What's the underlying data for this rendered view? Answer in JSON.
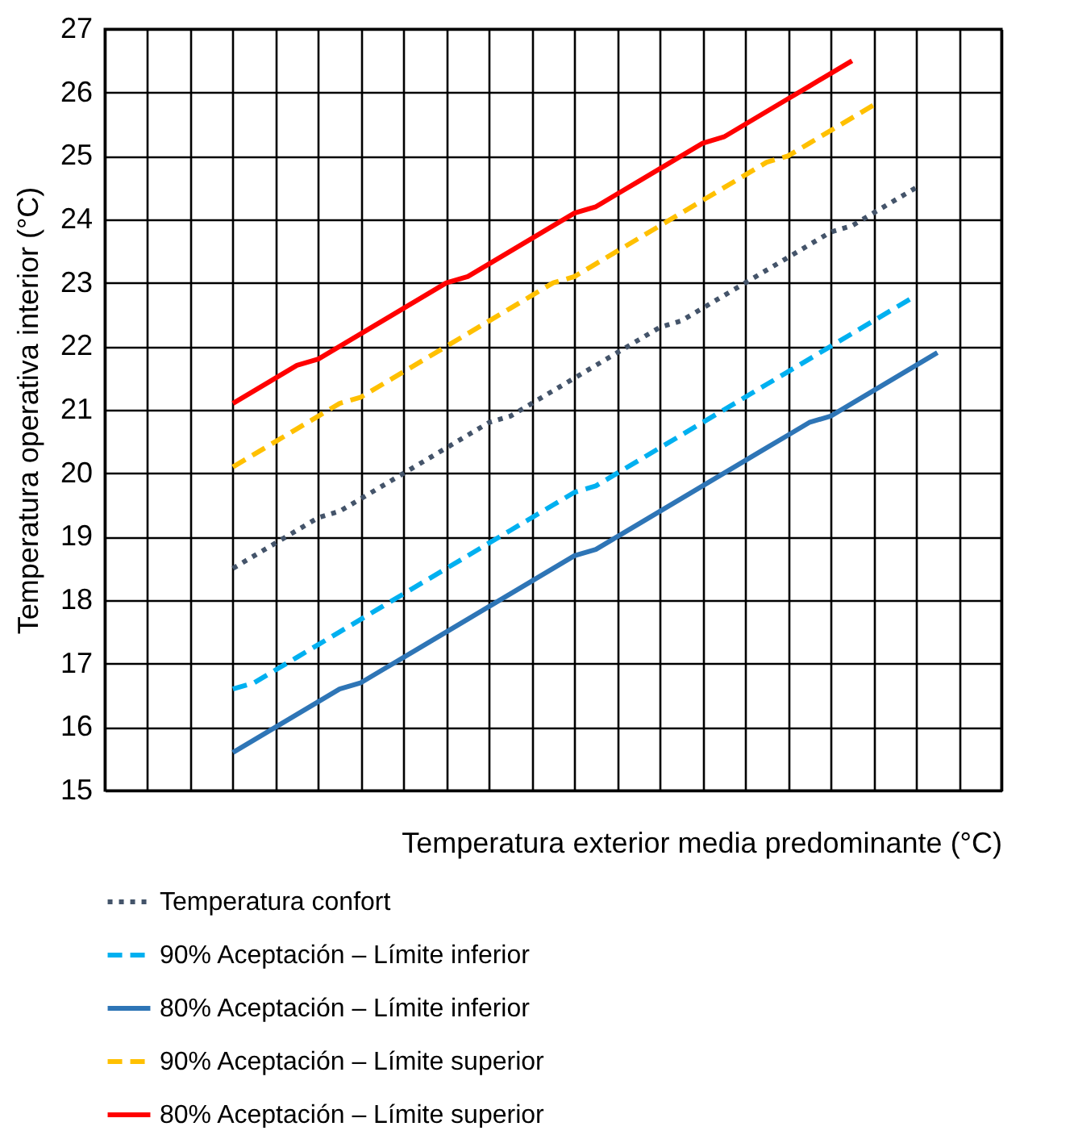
{
  "chart_data": {
    "type": "line",
    "xlabel": "Temperatura exterior media predominante (°C)",
    "ylabel": "Temperatura operativa interior (°C)",
    "categories": [
      null,
      null,
      null,
      null,
      null,
      null,
      null,
      null,
      null,
      null,
      null,
      null,
      null,
      null,
      null,
      null,
      null,
      null,
      null,
      null,
      null,
      null,
      null,
      null,
      null,
      null,
      null,
      null,
      null,
      null,
      null,
      null,
      null,
      null,
      null,
      null,
      null,
      null,
      null,
      null,
      null,
      null,
      null
    ],
    "ylim": [
      15,
      27
    ],
    "yticks": [
      15,
      16,
      17,
      18,
      19,
      20,
      21,
      22,
      23,
      24,
      25,
      26,
      27
    ],
    "grid": true,
    "legend": "bottom",
    "marker": "none",
    "series": [
      {
        "name": "Temperatura confort",
        "color": "#44546a",
        "line_style": "dotted",
        "values": [
          null,
          null,
          null,
          null,
          null,
          null,
          18.5,
          18.7,
          18.9,
          19.1,
          19.3,
          19.4,
          19.6,
          19.8,
          20,
          20.2,
          20.4,
          20.6,
          20.8,
          20.9,
          21.1,
          21.3,
          21.5,
          21.7,
          21.9,
          22.1,
          22.3,
          22.4,
          22.6,
          22.8,
          23,
          23.2,
          23.4,
          23.6,
          23.8,
          23.9,
          24.1,
          24.3,
          24.5,
          null,
          null,
          null,
          null
        ]
      },
      {
        "name": "90% Aceptación – Límite inferior",
        "color": "#00b0f0",
        "line_style": "dashed",
        "values": [
          null,
          null,
          null,
          null,
          null,
          null,
          16.6,
          16.7,
          16.9,
          17.1,
          17.3,
          17.5,
          17.7,
          17.9,
          18.1,
          18.3,
          18.5,
          18.7,
          18.9,
          19.1,
          19.3,
          19.5,
          19.7,
          19.8,
          20,
          20.2,
          20.4,
          20.6,
          20.8,
          21,
          21.2,
          21.4,
          21.6,
          21.8,
          22,
          22.2,
          22.4,
          22.6,
          22.8,
          null,
          null,
          null,
          null
        ]
      },
      {
        "name": "80% Aceptación – Límite inferior",
        "color": "#2e75b6",
        "line_style": "solid",
        "values": [
          null,
          null,
          null,
          null,
          null,
          null,
          15.6,
          15.8,
          16,
          16.2,
          16.4,
          16.6,
          16.7,
          16.9,
          17.1,
          17.3,
          17.5,
          17.7,
          17.9,
          18.1,
          18.3,
          18.5,
          18.7,
          18.8,
          19,
          19.2,
          19.4,
          19.6,
          19.8,
          20,
          20.2,
          20.4,
          20.6,
          20.8,
          20.9,
          21.1,
          21.3,
          21.5,
          21.7,
          21.9,
          null,
          null,
          null
        ]
      },
      {
        "name": "90% Aceptación – Límite superior",
        "color": "#ffc000",
        "line_style": "dashed",
        "values": [
          null,
          null,
          null,
          null,
          null,
          null,
          20.1,
          20.3,
          20.5,
          20.7,
          20.9,
          21.1,
          21.2,
          21.4,
          21.6,
          21.8,
          22,
          22.2,
          22.4,
          22.6,
          22.8,
          23,
          23.1,
          23.3,
          23.5,
          23.7,
          23.9,
          24.1,
          24.3,
          24.5,
          24.7,
          24.9,
          25,
          25.2,
          25.4,
          25.6,
          25.8,
          null,
          null,
          null,
          null,
          null,
          null
        ]
      },
      {
        "name": "80% Aceptación – Límite superior",
        "color": "#ff0000",
        "line_style": "solid",
        "values": [
          null,
          null,
          null,
          null,
          null,
          null,
          21.1,
          21.3,
          21.5,
          21.7,
          21.8,
          22,
          22.2,
          22.4,
          22.6,
          22.8,
          23,
          23.1,
          23.3,
          23.5,
          23.7,
          23.9,
          24.1,
          24.2,
          24.4,
          24.6,
          24.8,
          25,
          25.2,
          25.3,
          25.5,
          25.7,
          25.9,
          26.1,
          26.3,
          26.5,
          null,
          null,
          null,
          null,
          null,
          null,
          null
        ]
      }
    ]
  }
}
